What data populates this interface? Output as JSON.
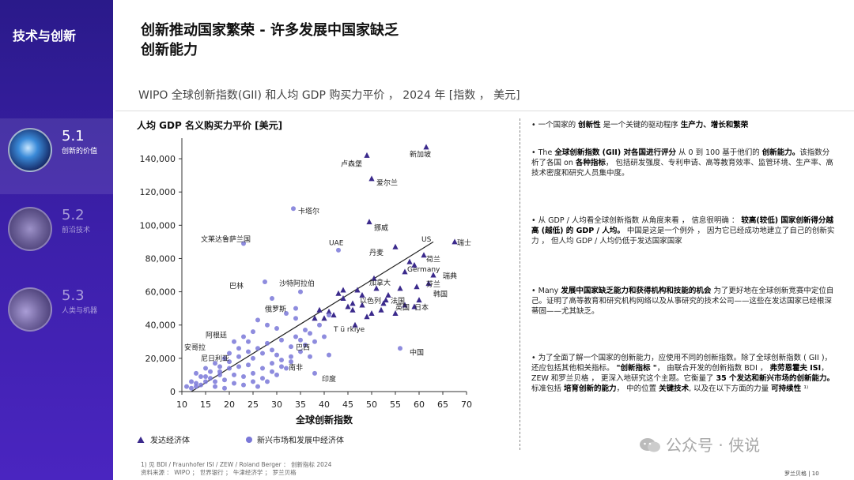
{
  "sidebar": {
    "section_title": "技术与创新",
    "items": [
      {
        "num": "5.1",
        "label": "创新的价值"
      },
      {
        "num": "5.2",
        "label": "前沿技术"
      },
      {
        "num": "5.3",
        "label": "人类与机器"
      }
    ]
  },
  "header": {
    "title_line1": "创新推动国家繁荣 - 许多发展中国家缺乏",
    "title_line2": "创新能力",
    "subtitle": "WIPO 全球创新指数(GII) 和人均 GDP 购买力平价 ， 2024 年 [指数 ， 美元]"
  },
  "chart_data": {
    "type": "scatter",
    "ylabel": "人均 GDP 名义购买力平价 [美元]",
    "xlabel": "全球创新指数",
    "xlim": [
      10,
      70
    ],
    "ylim": [
      0,
      150000
    ],
    "x_ticks": [
      "10",
      "15",
      "20",
      "25",
      "30",
      "35",
      "40",
      "45",
      "50",
      "55",
      "60",
      "65",
      "70"
    ],
    "y_ticks": [
      "0",
      "20,000",
      "40,000",
      "60,000",
      "80,000",
      "100,000",
      "120,000",
      "140,000"
    ],
    "grid": false,
    "legend": [
      {
        "name": "发达经济体",
        "marker": "triangle",
        "color": "#3b2a8c"
      },
      {
        "name": "新兴市场和发展中经济体",
        "marker": "circle",
        "color": "#7a78d8"
      }
    ],
    "trendline": {
      "from": [
        12,
        0
      ],
      "to": [
        63,
        90000
      ]
    },
    "series": [
      {
        "name": "发达经济体",
        "marker": "triangle",
        "color": "#3b2a8c",
        "points": [
          [
            61.5,
            147000
          ],
          [
            49,
            142000
          ],
          [
            50,
            128000
          ],
          [
            49.5,
            102000
          ],
          [
            67.5,
            90000
          ],
          [
            61,
            82000
          ],
          [
            55,
            87000
          ],
          [
            58,
            78000
          ],
          [
            59,
            76000
          ],
          [
            63,
            70000
          ],
          [
            59.5,
            63000
          ],
          [
            50.5,
            68000
          ],
          [
            47,
            61000
          ],
          [
            53.5,
            58000
          ],
          [
            56,
            62000
          ],
          [
            59,
            51000
          ],
          [
            57,
            52000
          ],
          [
            52.5,
            53000
          ],
          [
            48,
            58000
          ],
          [
            46,
            53000
          ],
          [
            44,
            56000
          ],
          [
            45,
            51000
          ],
          [
            41,
            48000
          ],
          [
            40,
            44000
          ],
          [
            46.5,
            40000
          ],
          [
            49,
            45000
          ],
          [
            46,
            49000
          ],
          [
            38,
            44000
          ],
          [
            55,
            47000
          ],
          [
            53,
            55000
          ],
          [
            57,
            72000
          ],
          [
            62,
            65000
          ],
          [
            51,
            62000
          ],
          [
            48,
            52000
          ],
          [
            43,
            59000
          ],
          [
            44,
            61000
          ],
          [
            39,
            49000
          ],
          [
            42,
            46000
          ],
          [
            50,
            47000
          ],
          [
            52,
            49000
          ],
          [
            60,
            55000
          ]
        ]
      },
      {
        "name": "新兴市场和发展中经济体",
        "marker": "circle",
        "color": "#7a78d8",
        "points": [
          [
            33.5,
            110000
          ],
          [
            23,
            89000
          ],
          [
            43,
            85000
          ],
          [
            27.5,
            66000
          ],
          [
            35,
            60000
          ],
          [
            29,
            56000
          ],
          [
            34,
            44000
          ],
          [
            41,
            46000
          ],
          [
            56,
            26000
          ],
          [
            38,
            11000
          ],
          [
            37,
            21000
          ],
          [
            33,
            27000
          ],
          [
            31,
            31000
          ],
          [
            29,
            25000
          ],
          [
            27,
            23000
          ],
          [
            25,
            20000
          ],
          [
            24,
            16000
          ],
          [
            22,
            15000
          ],
          [
            20,
            14000
          ],
          [
            18,
            10000
          ],
          [
            16,
            8000
          ],
          [
            15,
            6000
          ],
          [
            14,
            4000
          ],
          [
            13,
            3000
          ],
          [
            12,
            2000
          ],
          [
            11,
            3000
          ],
          [
            13,
            5000
          ],
          [
            15,
            9000
          ],
          [
            17,
            6000
          ],
          [
            19,
            7000
          ],
          [
            21,
            5000
          ],
          [
            23,
            9000
          ],
          [
            25,
            11000
          ],
          [
            27,
            14000
          ],
          [
            29,
            17000
          ],
          [
            31,
            19000
          ],
          [
            33,
            21000
          ],
          [
            35,
            24000
          ],
          [
            36,
            28000
          ],
          [
            38,
            30000
          ],
          [
            40,
            33000
          ],
          [
            28,
            29000
          ],
          [
            26,
            26000
          ],
          [
            24,
            24000
          ],
          [
            22,
            21000
          ],
          [
            20,
            18000
          ],
          [
            18,
            15000
          ],
          [
            16,
            12000
          ],
          [
            14,
            9000
          ],
          [
            12,
            6000
          ],
          [
            17,
            3000
          ],
          [
            19,
            2000
          ],
          [
            21,
            10000
          ],
          [
            23,
            4000
          ],
          [
            25,
            6000
          ],
          [
            27,
            8000
          ],
          [
            29,
            12000
          ],
          [
            31,
            15000
          ],
          [
            33,
            18000
          ],
          [
            35,
            31000
          ],
          [
            37,
            35000
          ],
          [
            30,
            38000
          ],
          [
            28,
            40000
          ],
          [
            26,
            43000
          ],
          [
            32,
            47000
          ],
          [
            34,
            50000
          ],
          [
            36,
            37000
          ],
          [
            39,
            40000
          ],
          [
            41,
            22000
          ],
          [
            24,
            30000
          ],
          [
            22,
            26000
          ],
          [
            20,
            23000
          ],
          [
            19,
            20000
          ],
          [
            17,
            17000
          ],
          [
            15,
            14000
          ],
          [
            13,
            11000
          ],
          [
            30,
            10000
          ],
          [
            32,
            14000
          ],
          [
            28,
            6000
          ],
          [
            26,
            3000
          ],
          [
            21,
            30000
          ],
          [
            23,
            33000
          ],
          [
            25,
            36000
          ],
          [
            30,
            22000
          ],
          [
            34,
            33000
          ],
          [
            18,
            12000
          ]
        ]
      }
    ],
    "annotations": [
      {
        "text": "新加坡",
        "x": 58,
        "y": 143000
      },
      {
        "text": "卢森堡",
        "x": 43.5,
        "y": 137500
      },
      {
        "text": "爱尔兰",
        "x": 51,
        "y": 126000
      },
      {
        "text": "卡塔尔",
        "x": 34.5,
        "y": 109000
      },
      {
        "text": "挪威",
        "x": 50.5,
        "y": 99000
      },
      {
        "text": "文莱达鲁萨兰国",
        "x": 14,
        "y": 92000
      },
      {
        "text": "UAE",
        "x": 41,
        "y": 90000
      },
      {
        "text": "US",
        "x": 60.5,
        "y": 92000
      },
      {
        "text": "瑞士",
        "x": 68,
        "y": 90000
      },
      {
        "text": "丹麦",
        "x": 49.5,
        "y": 84000
      },
      {
        "text": "荷兰",
        "x": 61.5,
        "y": 80000
      },
      {
        "text": "Germany",
        "x": 57.5,
        "y": 74000
      },
      {
        "text": "瑞典",
        "x": 65,
        "y": 70000
      },
      {
        "text": "加拿大",
        "x": 49.5,
        "y": 66000
      },
      {
        "text": "芬兰",
        "x": 61.5,
        "y": 65000
      },
      {
        "text": "巴林",
        "x": 20,
        "y": 64000
      },
      {
        "text": "沙特阿拉伯",
        "x": 30.5,
        "y": 65500
      },
      {
        "text": "韩国",
        "x": 63,
        "y": 59000
      },
      {
        "text": "以色列",
        "x": 47.5,
        "y": 55000
      },
      {
        "text": "法国",
        "x": 54,
        "y": 55000
      },
      {
        "text": "英国",
        "x": 55,
        "y": 51000
      },
      {
        "text": "日本",
        "x": 59,
        "y": 51000
      },
      {
        "text": "俄罗斯",
        "x": 27.5,
        "y": 50000
      },
      {
        "text": "T ü rkiye",
        "x": 42,
        "y": 38000
      },
      {
        "text": "阿根廷",
        "x": 15,
        "y": 34500
      },
      {
        "text": "安哥拉",
        "x": 10.5,
        "y": 27000
      },
      {
        "text": "巴西",
        "x": 34,
        "y": 27000
      },
      {
        "text": "尼日利亚",
        "x": 14,
        "y": 20500
      },
      {
        "text": "中国",
        "x": 58,
        "y": 24000
      },
      {
        "text": "南非",
        "x": 32.5,
        "y": 15000
      },
      {
        "text": "印度",
        "x": 39.5,
        "y": 8000
      }
    ]
  },
  "bullets": [
    {
      "parts": [
        {
          "t": "• 一个国家的 ",
          "b": false
        },
        {
          "t": "创新性",
          "b": true
        },
        {
          "t": " 是一个关键的驱动程序 ",
          "b": false
        },
        {
          "t": "生产力、增长和繁荣",
          "b": true
        }
      ]
    },
    {
      "parts": [
        {
          "t": "• The  ",
          "b": false
        },
        {
          "t": "全球创新指数 (GII) 对各国进行评分",
          "b": true
        },
        {
          "t": " 从 0 到 100 基于他们的 ",
          "b": false
        },
        {
          "t": "创新能力。",
          "b": true
        },
        {
          "t": "该指数分析了各国 on ",
          "b": false
        },
        {
          "t": "各种指标",
          "b": true
        },
        {
          "t": "， 包括研发强度、专利申请、高等教育效率、监管环境、生产率、高技术密度和研究人员集中度。",
          "b": false
        }
      ]
    },
    {
      "parts": [
        {
          "t": "• 从 GDP / 人均看全球创新指数 从角度来看 ， 信息很明确 ：    ",
          "b": false
        },
        {
          "t": "较高(较低) 国家创新得分越高 (越低) 的 GDP / 人均。",
          "b": true
        },
        {
          "t": "         中国是这是一个例外 ， 因为它已经成功地建立了自己的创新实力 ， 但人均 GDP / 人均仍低于发达国家国家",
          "b": false
        }
      ]
    },
    {
      "parts": [
        {
          "t": "• Many  ",
          "b": false
        },
        {
          "t": "发展中国家缺乏能力和获得机构和技能的机会",
          "b": true
        },
        {
          "t": " 为了更好地在全球创新竞赛中定位自己。证明了高等教育和研究机构网络以及从事研究的技术公司——这些在发达国家已经根深蒂固——尤其缺乏。",
          "b": false
        }
      ]
    },
    {
      "parts": [
        {
          "t": "• 为了全面了解一个国家的创新能力，应使用不同的创新指数。除了全球创新指数 ( GII )，还应包括其他相关指标。 ",
          "b": false
        },
        {
          "t": "\"创新指标 \"",
          "b": true
        },
        {
          "t": "， 由联合开发的创新指数 BDI ， ",
          "b": false
        },
        {
          "t": "弗劳恩霍夫 ISI",
          "b": true
        },
        {
          "t": "， ZEW 和罗兰贝格 ， 更深入地研究这个主题。它衡量了 ",
          "b": false
        },
        {
          "t": "35 个发达和新兴市场的创新能力。",
          "b": true
        },
        {
          "t": " 标准包括 ",
          "b": false
        },
        {
          "t": "培育创新的能力",
          "b": true
        },
        {
          "t": "， 中的位置 ",
          "b": false
        },
        {
          "t": "关键技术",
          "b": true
        },
        {
          "t": ", 以及在以下方面的力量 ",
          "b": false
        },
        {
          "t": "可持续性",
          "b": true
        },
        {
          "t": " ¹⁾",
          "b": false
        }
      ]
    }
  ],
  "footnote": {
    "line1": "1) 见 BDI / Fraunhofer ISI / ZEW / Roland Berger ： 创新指标 2024",
    "line2": "资料来源 ： WIPO ； 世界银行 ； 牛津经济学 ； 罗兰贝格"
  },
  "page_number": "罗兰贝格 | 10",
  "watermark": "公众号 · 侠说"
}
